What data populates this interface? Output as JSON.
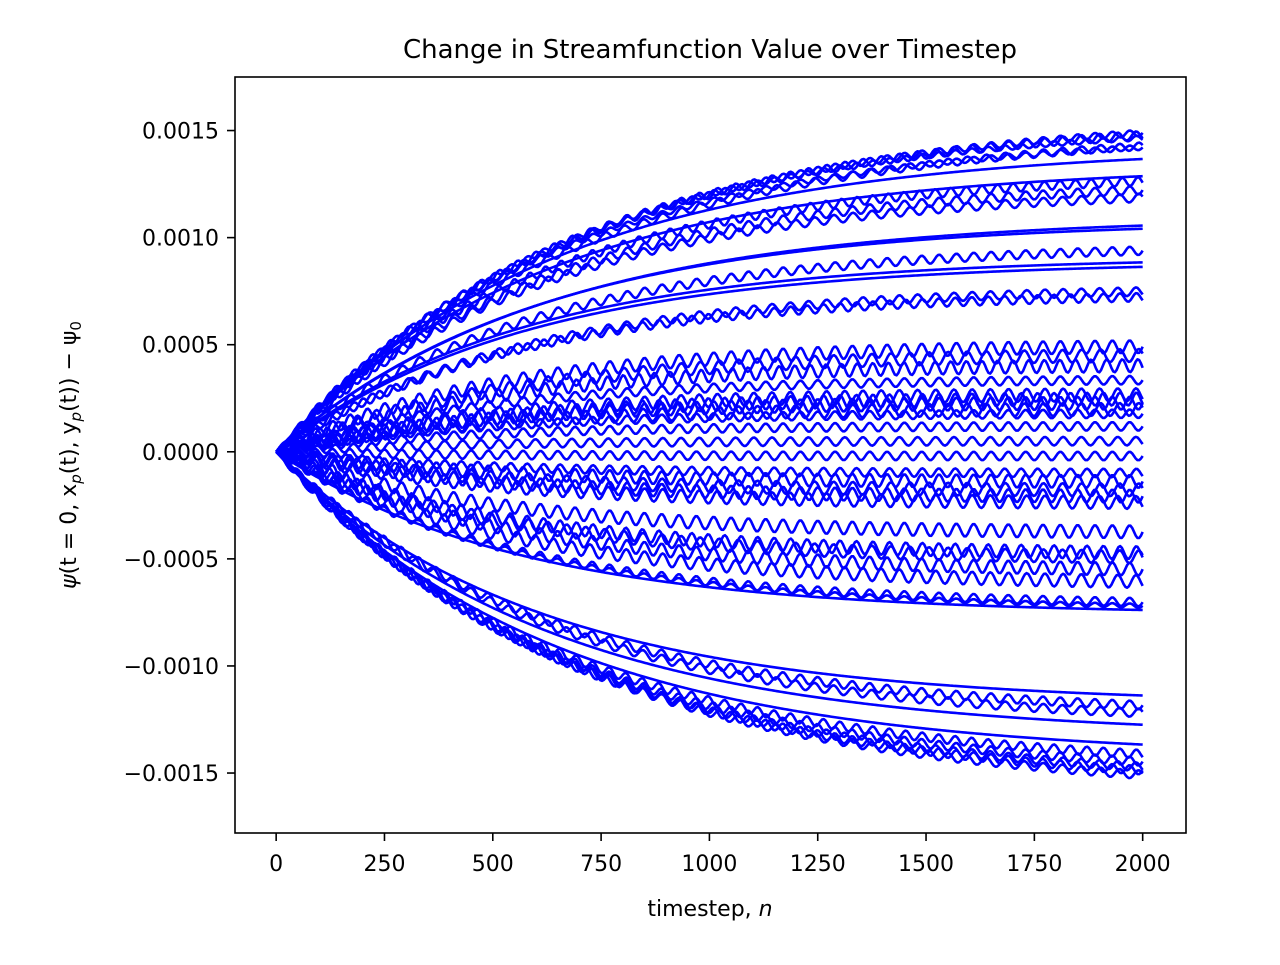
{
  "chart_data": {
    "type": "line",
    "title": "Change in Streamfunction Value over Timestep",
    "xlabel": {
      "text": "timestep, ",
      "var": "n"
    },
    "ylabel": {
      "psi": "ψ",
      "part1": "(t = 0, x",
      "sub_p1": "p",
      "part2": "(t), y",
      "sub_p2": "p",
      "part3": "(t)) − ψ",
      "sub_0": "0"
    },
    "xlim": [
      -95,
      2100
    ],
    "ylim": [
      -0.00178,
      0.00175
    ],
    "xticks": [
      0,
      250,
      500,
      750,
      1000,
      1250,
      1500,
      1750,
      2000
    ],
    "yticks": [
      0.0015,
      0.001,
      0.0005,
      0.0,
      -0.0005,
      -0.001,
      -0.0015
    ],
    "ytick_labels": [
      "0.0015",
      "0.0010",
      "0.0005",
      "0.0000",
      "−0.0005",
      "−0.0010",
      "−0.0015"
    ],
    "grid": false,
    "legend": null,
    "series_color": "#0000ff",
    "x_range": [
      0,
      2000
    ],
    "model": "value(n) = final * (1 - exp(-n / tau)) + amp * sin(2*pi*n / period) * (1 - exp(-n / 40))",
    "series": [
      {
        "final": 0.00158,
        "tau": 700,
        "amp": 1.5e-05,
        "period": 40
      },
      {
        "final": 0.00156,
        "tau": 680,
        "amp": 2e-05,
        "period": 42
      },
      {
        "final": 0.00154,
        "tau": 660,
        "amp": 1.2e-05,
        "period": 38
      },
      {
        "final": 0.00151,
        "tau": 690,
        "amp": 1.8e-05,
        "period": 44
      },
      {
        "final": 0.00149,
        "tau": 650,
        "amp": 1.2e-05,
        "period": 40
      },
      {
        "final": 0.00143,
        "tau": 640,
        "amp": 0.0,
        "period": 40
      },
      {
        "final": 0.00134,
        "tau": 620,
        "amp": 0.0,
        "period": 40
      },
      {
        "final": 0.00131,
        "tau": 600,
        "amp": 2e-05,
        "period": 36
      },
      {
        "final": 0.00127,
        "tau": 610,
        "amp": 2e-05,
        "period": 40
      },
      {
        "final": 0.00123,
        "tau": 600,
        "amp": 2e-05,
        "period": 44
      },
      {
        "final": 0.0011,
        "tau": 620,
        "amp": 0.0,
        "period": 40
      },
      {
        "final": 0.00108,
        "tau": 600,
        "amp": 0.0,
        "period": 40
      },
      {
        "final": 0.00097,
        "tau": 580,
        "amp": 2e-05,
        "period": 40
      },
      {
        "final": 0.00091,
        "tau": 560,
        "amp": 0.0,
        "period": 40
      },
      {
        "final": 0.00089,
        "tau": 570,
        "amp": 0.0,
        "period": 40
      },
      {
        "final": 0.00077,
        "tau": 560,
        "amp": 2e-05,
        "period": 42
      },
      {
        "final": 0.00074,
        "tau": 540,
        "amp": 2e-05,
        "period": 38
      },
      {
        "final": 0.0005,
        "tau": 500,
        "amp": 3e-05,
        "period": 40
      },
      {
        "final": 0.00046,
        "tau": 520,
        "amp": 3e-05,
        "period": 44
      },
      {
        "final": 0.00041,
        "tau": 500,
        "amp": 3e-05,
        "period": 36
      },
      {
        "final": 0.00034,
        "tau": 480,
        "amp": 2e-05,
        "period": 40
      },
      {
        "final": 0.00027,
        "tau": 460,
        "amp": 3e-05,
        "period": 42
      },
      {
        "final": 0.00025,
        "tau": 470,
        "amp": 3e-05,
        "period": 38
      },
      {
        "final": 0.00023,
        "tau": 450,
        "amp": 3e-05,
        "period": 40
      },
      {
        "final": 0.0002,
        "tau": 440,
        "amp": 3e-05,
        "period": 44
      },
      {
        "final": 0.00018,
        "tau": 460,
        "amp": 2e-05,
        "period": 40
      },
      {
        "final": 0.00012,
        "tau": 420,
        "amp": 2e-05,
        "period": 40
      },
      {
        "final": 5e-05,
        "tau": 400,
        "amp": 2e-05,
        "period": 42
      },
      {
        "final": -2e-05,
        "tau": 400,
        "amp": 2e-05,
        "period": 40
      },
      {
        "final": -0.0001,
        "tau": 420,
        "amp": 2e-05,
        "period": 38
      },
      {
        "final": -0.00014,
        "tau": 440,
        "amp": 3e-05,
        "period": 40
      },
      {
        "final": -0.00018,
        "tau": 450,
        "amp": 3e-05,
        "period": 44
      },
      {
        "final": -0.00021,
        "tau": 460,
        "amp": 3e-05,
        "period": 40
      },
      {
        "final": -0.00024,
        "tau": 470,
        "amp": 3e-05,
        "period": 42
      },
      {
        "final": -0.00038,
        "tau": 480,
        "amp": 3e-05,
        "period": 40
      },
      {
        "final": -0.00048,
        "tau": 500,
        "amp": 3e-05,
        "period": 38
      },
      {
        "final": -0.0005,
        "tau": 500,
        "amp": 3e-05,
        "period": 44
      },
      {
        "final": -0.00056,
        "tau": 520,
        "amp": 3e-05,
        "period": 40
      },
      {
        "final": -0.00062,
        "tau": 530,
        "amp": 3e-05,
        "period": 42
      },
      {
        "final": -0.00072,
        "tau": 540,
        "amp": 2e-05,
        "period": 40
      },
      {
        "final": -0.00074,
        "tau": 560,
        "amp": 1e-05,
        "period": 40
      },
      {
        "final": -0.00076,
        "tau": 560,
        "amp": 0.0,
        "period": 40
      },
      {
        "final": -0.00118,
        "tau": 600,
        "amp": 0.0,
        "period": 40
      },
      {
        "final": -0.00123,
        "tau": 610,
        "amp": 2e-05,
        "period": 40
      },
      {
        "final": -0.00127,
        "tau": 620,
        "amp": 2e-05,
        "period": 44
      },
      {
        "final": -0.00133,
        "tau": 630,
        "amp": 0.0,
        "period": 40
      },
      {
        "final": -0.00143,
        "tau": 640,
        "amp": 0.0,
        "period": 40
      },
      {
        "final": -0.00148,
        "tau": 650,
        "amp": 2e-05,
        "period": 38
      },
      {
        "final": -0.00152,
        "tau": 660,
        "amp": 2e-05,
        "period": 40
      },
      {
        "final": -0.00155,
        "tau": 670,
        "amp": 2e-05,
        "period": 42
      },
      {
        "final": -0.00157,
        "tau": 680,
        "amp": 2e-05,
        "period": 40
      },
      {
        "final": -0.0016,
        "tau": 700,
        "amp": 2e-05,
        "period": 44
      }
    ]
  }
}
